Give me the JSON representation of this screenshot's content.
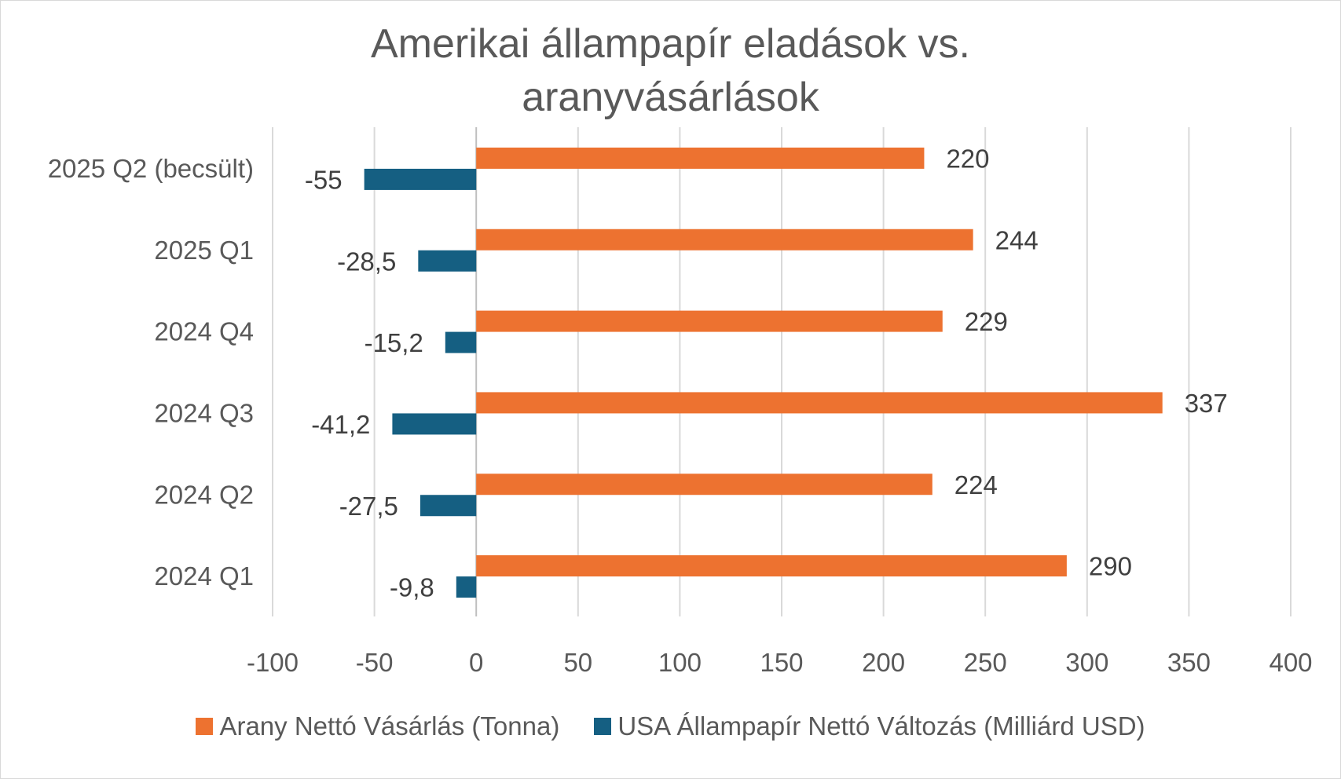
{
  "chart_data": {
    "type": "bar",
    "orientation": "horizontal",
    "title_lines": [
      "Amerikai állampapír eladások vs.",
      "aranyvásárlások"
    ],
    "categories": [
      "2024 Q1",
      "2024 Q2",
      "2024 Q3",
      "2024 Q4",
      "2025 Q1",
      "2025 Q2 (becsült)"
    ],
    "series": [
      {
        "name": "Arany Nettó Vásárlás (Tonna)",
        "color": "#ed7230",
        "values": [
          290,
          224,
          337,
          229,
          244,
          220
        ],
        "labels": [
          "290",
          "224",
          "337",
          "229",
          "244",
          "220"
        ]
      },
      {
        "name": "USA Állampapír Nettó Változás (Milliárd USD)",
        "color": "#155f82",
        "values": [
          -9.8,
          -27.5,
          -41.2,
          -15.2,
          -28.5,
          -55
        ],
        "labels": [
          "-9,8",
          "-27,5",
          "-41,2",
          "-15,2",
          "-28,5",
          "-55"
        ]
      }
    ],
    "xlim": [
      -100,
      400
    ],
    "x_ticks": [
      -100,
      -50,
      0,
      50,
      100,
      150,
      200,
      250,
      300,
      350,
      400
    ],
    "x_tick_labels": [
      "-100",
      "-50",
      "0",
      "50",
      "100",
      "150",
      "200",
      "250",
      "300",
      "350",
      "400"
    ],
    "grid": "vertical",
    "legend_position": "bottom"
  }
}
